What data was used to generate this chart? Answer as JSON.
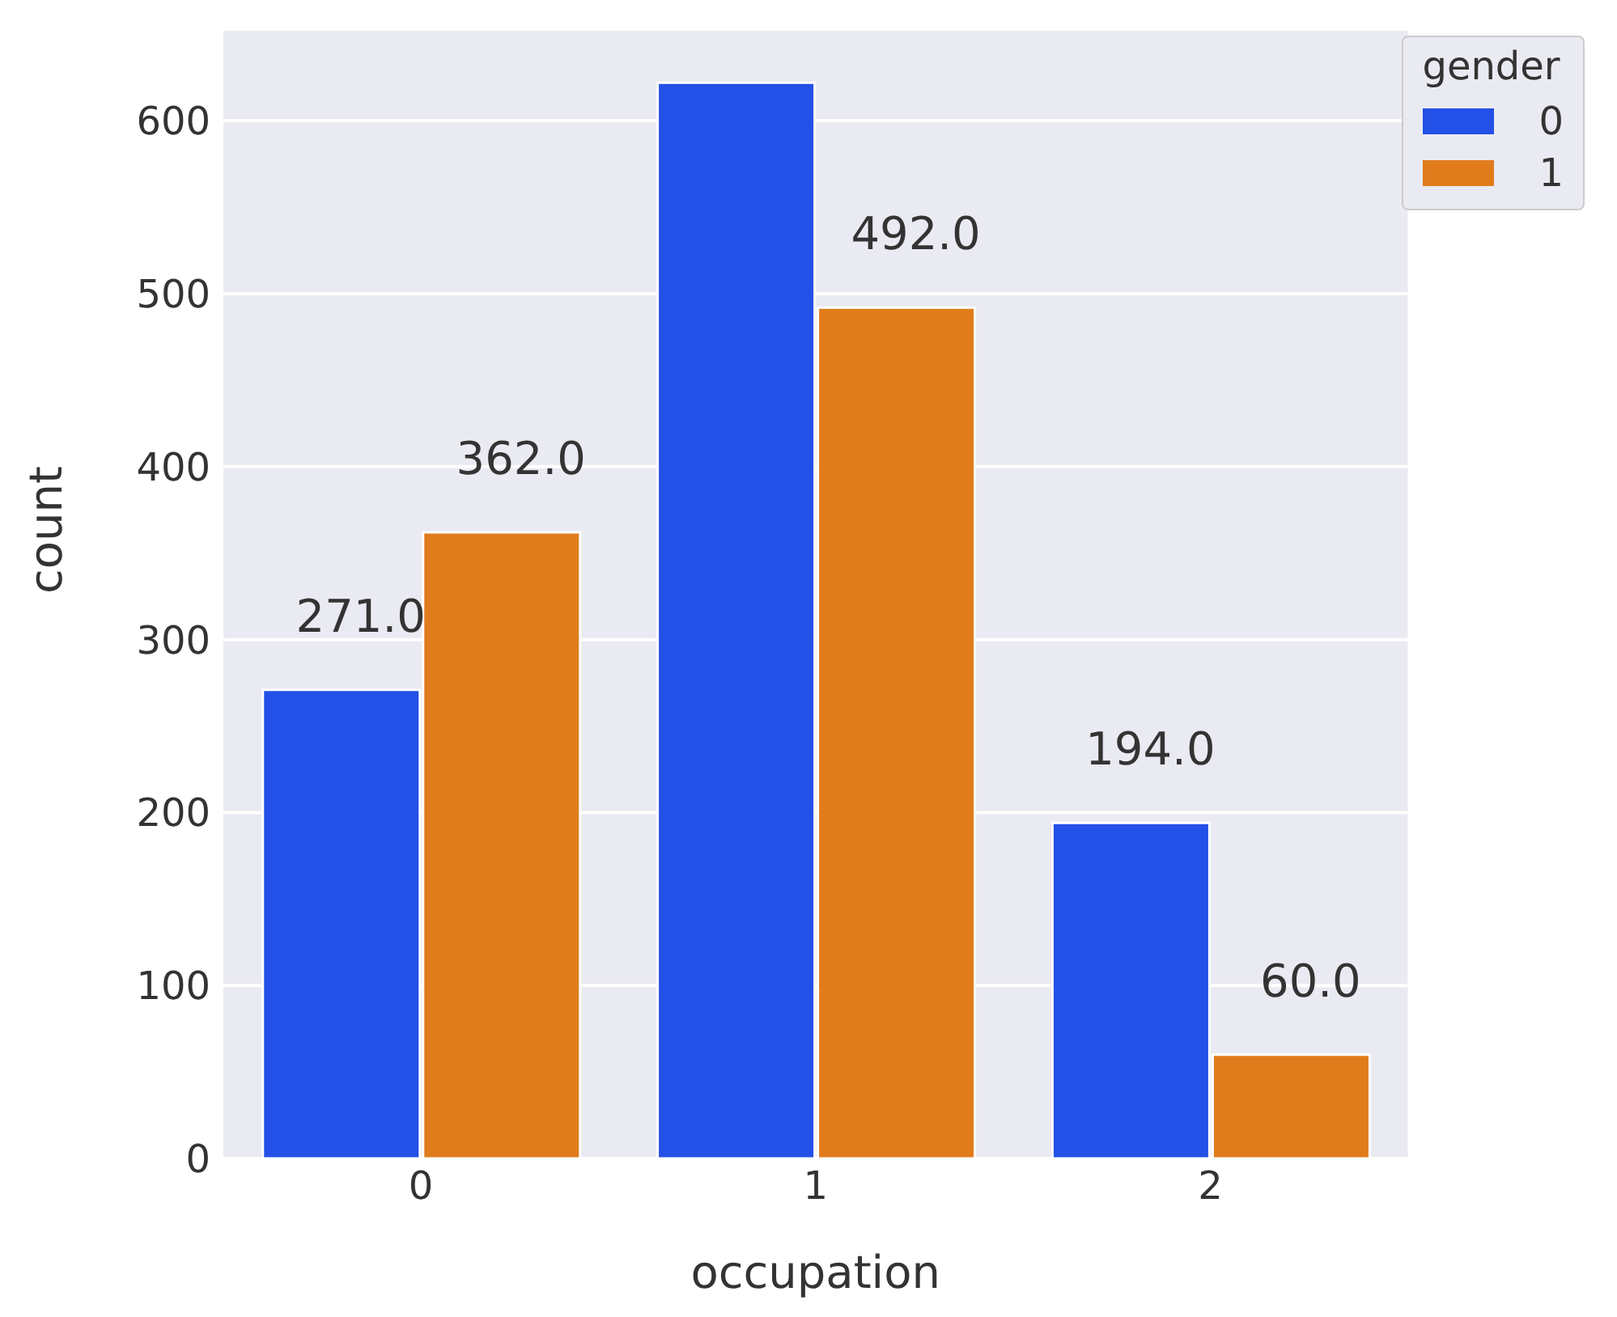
{
  "chart_data": {
    "type": "bar",
    "xlabel": "occupation",
    "ylabel": "count",
    "legend_title": "gender",
    "categories": [
      "0",
      "1",
      "2"
    ],
    "series": [
      {
        "name": "0",
        "color": "#2350e6",
        "values": [
          271,
          622,
          194
        ],
        "value_labels": [
          "271.0",
          null,
          "194.0"
        ]
      },
      {
        "name": "1",
        "color": "#e07c1c",
        "values": [
          362,
          492,
          60
        ],
        "value_labels": [
          "362.0",
          "492.0",
          "60.0"
        ]
      }
    ],
    "ylim": [
      0,
      653
    ],
    "yticks": [
      0,
      100,
      200,
      300,
      400,
      500,
      600
    ],
    "grid": "y",
    "legend": "top right"
  }
}
